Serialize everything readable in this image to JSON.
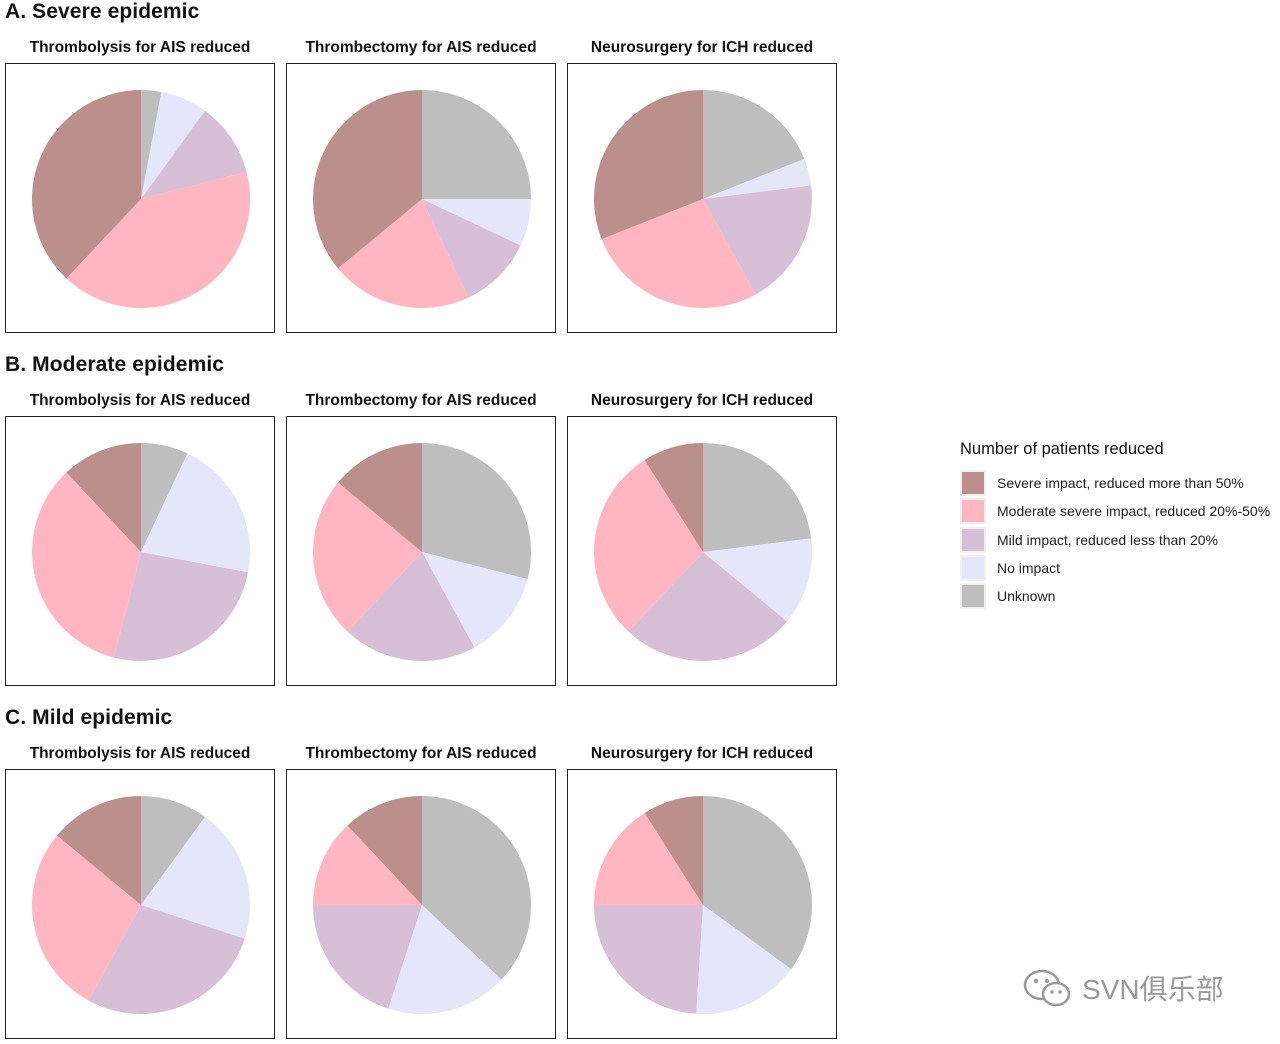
{
  "colors": {
    "severe": "#bb8f8b",
    "moderate": "#ffb6c1",
    "mild": "#d8bfd8",
    "none": "#e6e6fa",
    "unknown": "#bebebe"
  },
  "legend": {
    "title": "Number of patients reduced",
    "items": [
      {
        "key": "severe",
        "label": "Severe impact, reduced more than 50%"
      },
      {
        "key": "moderate",
        "label": "Moderate severe impact, reduced 20%-50%"
      },
      {
        "key": "mild",
        "label": "Mild impact, reduced less than 20%"
      },
      {
        "key": "none",
        "label": "No impact"
      },
      {
        "key": "unknown",
        "label": "Unknown"
      }
    ]
  },
  "watermark": {
    "text": "SVN俱乐部"
  },
  "sections": [
    {
      "title": "A. Severe epidemic"
    },
    {
      "title": "B. Moderate epidemic"
    },
    {
      "title": "C. Mild epidemic"
    }
  ],
  "chart_data": [
    {
      "type": "pie",
      "title": "Thrombolysis for AIS reduced",
      "group": "A. Severe epidemic",
      "categories": [
        "Unknown",
        "No impact",
        "Mild impact, reduced less than 20%",
        "Moderate severe impact, reduced 20%-50%",
        "Severe impact, reduced more than 50%"
      ],
      "values": [
        3,
        7,
        11,
        41,
        38
      ]
    },
    {
      "type": "pie",
      "title": "Thrombectomy for AIS reduced",
      "group": "A. Severe epidemic",
      "categories": [
        "Unknown",
        "No impact",
        "Mild impact, reduced less than 20%",
        "Moderate severe impact, reduced 20%-50%",
        "Severe impact, reduced more than 50%"
      ],
      "values": [
        25,
        7,
        11,
        21,
        36
      ]
    },
    {
      "type": "pie",
      "title": "Neurosurgery for ICH reduced",
      "group": "A. Severe epidemic",
      "categories": [
        "Unknown",
        "No impact",
        "Mild impact, reduced less than 20%",
        "Moderate severe impact, reduced 20%-50%",
        "Severe impact, reduced more than 50%"
      ],
      "values": [
        19,
        4,
        19,
        27,
        31
      ]
    },
    {
      "type": "pie",
      "title": "Thrombolysis for AIS reduced",
      "group": "B. Moderate epidemic",
      "categories": [
        "Unknown",
        "No impact",
        "Mild impact, reduced less than 20%",
        "Moderate severe impact, reduced 20%-50%",
        "Severe impact, reduced more than 50%"
      ],
      "values": [
        7,
        21,
        26,
        34,
        12
      ]
    },
    {
      "type": "pie",
      "title": "Thrombectomy for AIS reduced",
      "group": "B. Moderate epidemic",
      "categories": [
        "Unknown",
        "No impact",
        "Mild impact, reduced less than 20%",
        "Moderate severe impact, reduced 20%-50%",
        "Severe impact, reduced more than 50%"
      ],
      "values": [
        29,
        13,
        20,
        24,
        14
      ]
    },
    {
      "type": "pie",
      "title": "Neurosurgery for ICH reduced",
      "group": "B. Moderate epidemic",
      "categories": [
        "Unknown",
        "No impact",
        "Mild impact, reduced less than 20%",
        "Moderate severe impact, reduced 20%-50%",
        "Severe impact, reduced more than 50%"
      ],
      "values": [
        23,
        13,
        26,
        29,
        9
      ]
    },
    {
      "type": "pie",
      "title": "Thrombolysis for AIS reduced",
      "group": "C. Mild epidemic",
      "categories": [
        "Unknown",
        "No impact",
        "Mild impact, reduced less than 20%",
        "Moderate severe impact, reduced 20%-50%",
        "Severe impact, reduced more than 50%"
      ],
      "values": [
        10,
        20,
        28,
        28,
        14
      ]
    },
    {
      "type": "pie",
      "title": "Thrombectomy for AIS reduced",
      "group": "C. Mild epidemic",
      "categories": [
        "Unknown",
        "No impact",
        "Mild impact, reduced less than 20%",
        "Moderate severe impact, reduced 20%-50%",
        "Severe impact, reduced more than 50%"
      ],
      "values": [
        37,
        18,
        20,
        13,
        12
      ]
    },
    {
      "type": "pie",
      "title": "Neurosurgery for ICH reduced",
      "group": "C. Mild epidemic",
      "categories": [
        "Unknown",
        "No impact",
        "Mild impact, reduced less than 20%",
        "Moderate severe impact, reduced 20%-50%",
        "Severe impact, reduced more than 50%"
      ],
      "values": [
        35,
        16,
        24,
        16,
        9
      ]
    }
  ]
}
